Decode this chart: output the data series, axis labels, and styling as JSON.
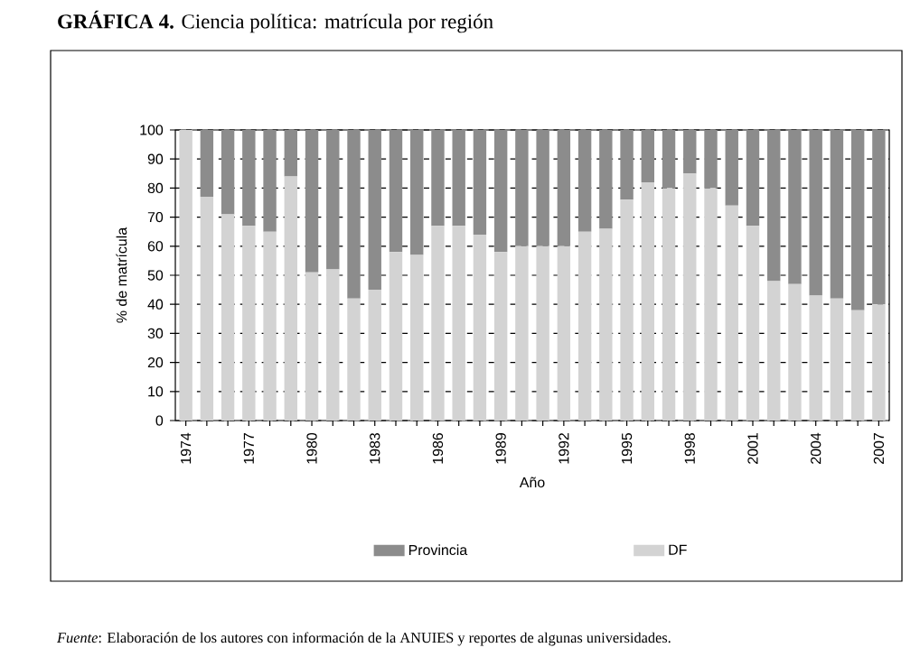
{
  "chart_data": {
    "type": "bar",
    "stacked": true,
    "title": "**GRÁFICA 4.** Ciencia política: matrícula por región",
    "xlabel": "Año",
    "ylabel": "% de matrícula",
    "categories": [
      "1974",
      null,
      null,
      "1977",
      null,
      null,
      "1980",
      null,
      null,
      "1983",
      null,
      null,
      "1986",
      null,
      null,
      "1989",
      null,
      null,
      "1992",
      null,
      null,
      "1995",
      null,
      null,
      "1998",
      null,
      null,
      "2001",
      null,
      null,
      "2004",
      null,
      null,
      "2007"
    ],
    "series": [
      {
        "name": "DF",
        "color": "#d3d3d3",
        "values": [
          100,
          77,
          71,
          67,
          65,
          84,
          51,
          52,
          42,
          45,
          58,
          57,
          67,
          67,
          64,
          58,
          60,
          60,
          60,
          65,
          66,
          76,
          82,
          80,
          85,
          80,
          74,
          67,
          48,
          47,
          43,
          42,
          38,
          40
        ]
      },
      {
        "name": "Provincia",
        "color": "#8c8c8c",
        "values": [
          0,
          23,
          29,
          33,
          35,
          16,
          49,
          48,
          58,
          55,
          42,
          43,
          33,
          33,
          36,
          42,
          40,
          40,
          40,
          35,
          34,
          24,
          18,
          20,
          15,
          20,
          26,
          33,
          52,
          53,
          57,
          58,
          62,
          60
        ]
      }
    ],
    "ylim": [
      0,
      100
    ],
    "yticks": [
      0,
      10,
      20,
      30,
      40,
      50,
      60,
      70,
      80,
      90,
      100
    ],
    "grid": "y",
    "legend": "bottom",
    "annotations": [
      "*Fuente*: Elaboración de los autores con información de la ANUIES y reportes de algunas universidades."
    ]
  }
}
